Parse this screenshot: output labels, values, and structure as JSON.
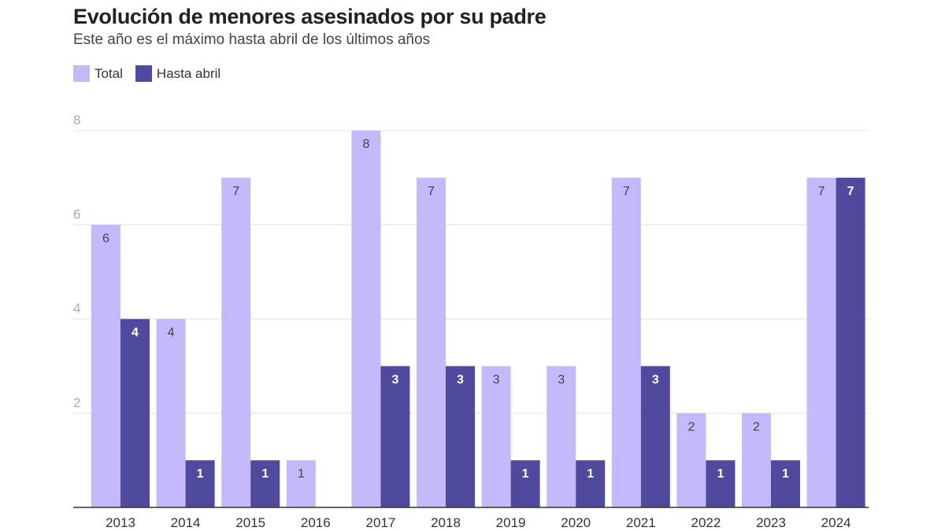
{
  "chart_data": {
    "type": "bar",
    "title": "Evolución de menores asesinados por su padre",
    "subtitle": "Este año es el máximo hasta abril de los últimos años",
    "categories": [
      "2013",
      "2014",
      "2015",
      "2016",
      "2017",
      "2018",
      "2019",
      "2020",
      "2021",
      "2022",
      "2023",
      "2024"
    ],
    "series": [
      {
        "name": "Total",
        "color": "#c3b9fb",
        "label_color": "#444444",
        "values": [
          6,
          4,
          7,
          1,
          8,
          7,
          3,
          3,
          7,
          2,
          2,
          7
        ]
      },
      {
        "name": "Hasta abril",
        "color": "#4f4a9e",
        "label_color": "#ffffff",
        "values": [
          4,
          1,
          1,
          0,
          3,
          3,
          1,
          1,
          3,
          1,
          1,
          7
        ]
      }
    ],
    "yticks": [
      2,
      4,
      6,
      8
    ],
    "ylim": [
      0,
      8
    ],
    "grid": true,
    "legend_position": "top-left",
    "xlabel": "",
    "ylabel": ""
  }
}
